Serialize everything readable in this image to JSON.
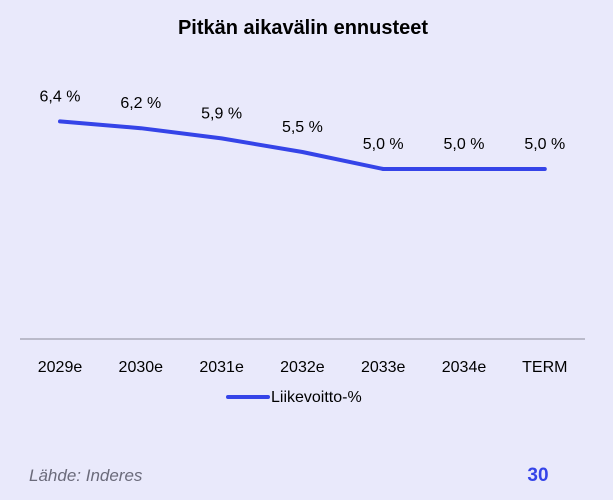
{
  "page_number": "30",
  "source": "Lähde: Inderes",
  "colors": {
    "background": "#e9e9fb",
    "series": "#3544e8",
    "axis": "#8a8a99",
    "page_number": "#3544e8"
  },
  "chart_data": {
    "type": "line",
    "title": "Pitkän aikavälin ennusteet",
    "categories": [
      "2029e",
      "2030e",
      "2031e",
      "2032e",
      "2033e",
      "2034e",
      "TERM"
    ],
    "series": [
      {
        "name": "Liikevoitto-%",
        "values": [
          6.4,
          6.2,
          5.9,
          5.5,
          5.0,
          5.0,
          5.0
        ],
        "labels": [
          "6,4 %",
          "6,2 %",
          "5,9 %",
          "5,5 %",
          "5,0 %",
          "5,0 %",
          "5,0 %"
        ]
      }
    ],
    "ylim": [
      0,
      6.4
    ],
    "grid": false,
    "legend": "bottom"
  }
}
